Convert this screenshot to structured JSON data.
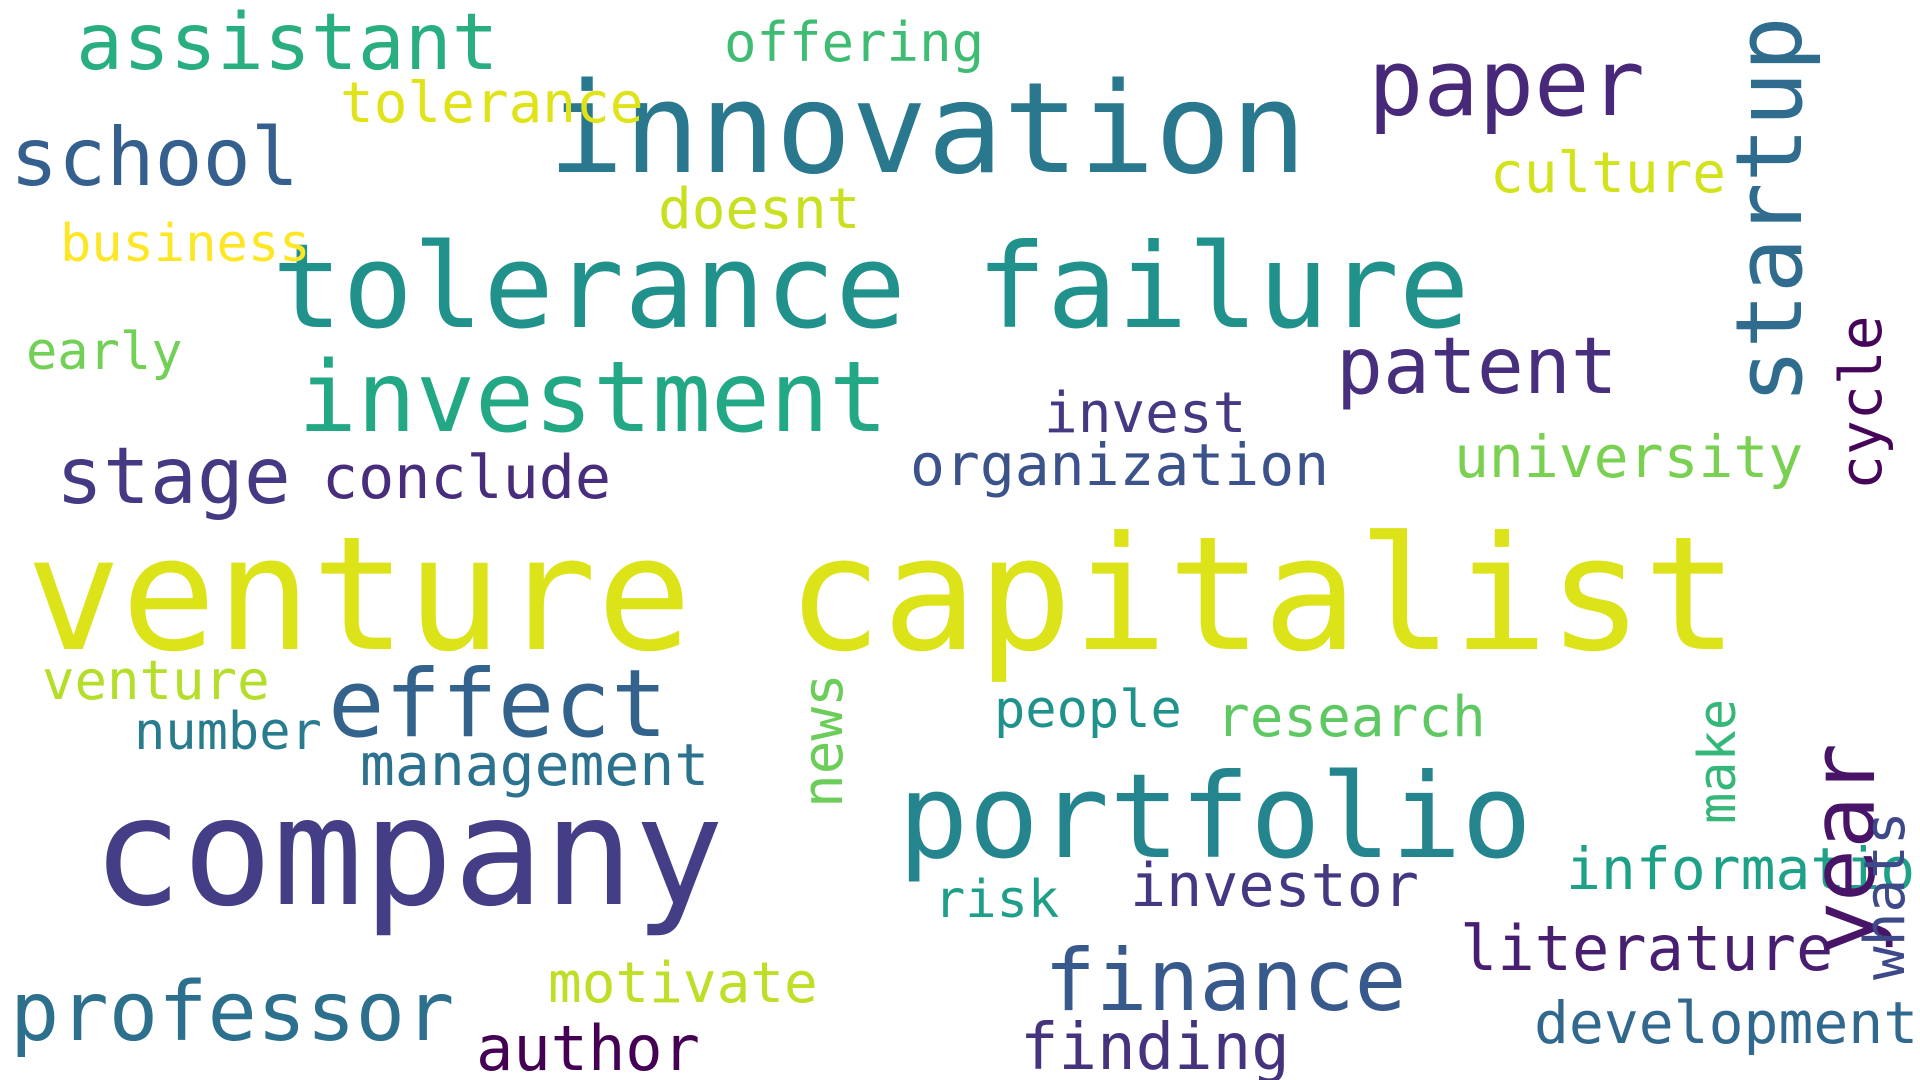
{
  "words": [
    {
      "text": "venture capitalist",
      "color": "#dce319"
    },
    {
      "text": "company",
      "color": "#433e85"
    },
    {
      "text": "innovation",
      "color": "#2a788e"
    },
    {
      "text": "tolerance failure",
      "color": "#21918c"
    },
    {
      "text": "portfolio",
      "color": "#25858e"
    },
    {
      "text": "investment",
      "color": "#22a884"
    },
    {
      "text": "paper",
      "color": "#482878"
    },
    {
      "text": "effect",
      "color": "#33638d"
    },
    {
      "text": "finance",
      "color": "#38598c"
    },
    {
      "text": "professor",
      "color": "#2d708e"
    },
    {
      "text": "school",
      "color": "#355f8d"
    },
    {
      "text": "assistant",
      "color": "#29af7f"
    },
    {
      "text": "patent",
      "color": "#472f7d"
    },
    {
      "text": "stage",
      "color": "#443a83"
    },
    {
      "text": "finding",
      "color": "#46337e"
    },
    {
      "text": "author",
      "color": "#440154"
    },
    {
      "text": "literature",
      "color": "#481f70"
    },
    {
      "text": "investor",
      "color": "#453781"
    },
    {
      "text": "conclude",
      "color": "#472d7b"
    },
    {
      "text": "management",
      "color": "#2c728e"
    },
    {
      "text": "development",
      "color": "#31688e"
    },
    {
      "text": "information",
      "color": "#1fa187"
    },
    {
      "text": "university",
      "color": "#7ad151"
    },
    {
      "text": "invest",
      "color": "#443983"
    },
    {
      "text": "organization",
      "color": "#3b528b"
    },
    {
      "text": "research",
      "color": "#5ec962"
    },
    {
      "text": "motivate",
      "color": "#bddf26"
    },
    {
      "text": "venture",
      "color": "#b5de2b"
    },
    {
      "text": "doesnt",
      "color": "#c8e020"
    },
    {
      "text": "tolerance",
      "color": "#dfe318"
    },
    {
      "text": "offering",
      "color": "#3fbc73"
    },
    {
      "text": "culture",
      "color": "#d2e21b"
    },
    {
      "text": "business",
      "color": "#fde725"
    },
    {
      "text": "early",
      "color": "#73d056"
    },
    {
      "text": "number",
      "color": "#297b8e"
    },
    {
      "text": "people",
      "color": "#20928c"
    },
    {
      "text": "risk",
      "color": "#1f9e89"
    },
    {
      "text": "startup",
      "color": "#2f6c8e"
    },
    {
      "text": "year",
      "color": "#481467"
    },
    {
      "text": "cycle",
      "color": "#450559"
    },
    {
      "text": "whats",
      "color": "#3e4989"
    },
    {
      "text": "news",
      "color": "#6ccd5a"
    },
    {
      "text": "make",
      "color": "#35b779"
    }
  ]
}
